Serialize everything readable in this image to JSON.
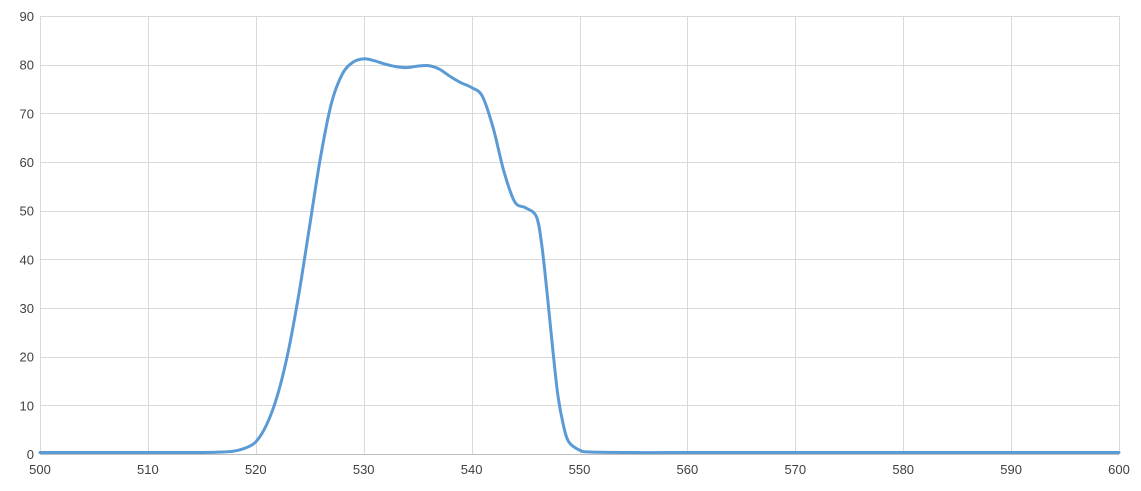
{
  "chart_data": {
    "type": "line",
    "title": "",
    "xlabel": "",
    "ylabel": "",
    "xlim": [
      500,
      600
    ],
    "ylim": [
      0,
      90
    ],
    "x_ticks": [
      500,
      510,
      520,
      530,
      540,
      550,
      560,
      570,
      580,
      590,
      600
    ],
    "y_ticks": [
      0,
      10,
      20,
      30,
      40,
      50,
      60,
      70,
      80,
      90
    ],
    "grid": true,
    "legend": "none",
    "colors": {
      "series": "#5b9bd5",
      "grid": "#d9d9d9",
      "axis": "#bfbfbf"
    },
    "series": [
      {
        "points": [
          [
            500,
            0.3
          ],
          [
            505,
            0.3
          ],
          [
            510,
            0.3
          ],
          [
            515,
            0.3
          ],
          [
            517,
            0.4
          ],
          [
            518,
            0.6
          ],
          [
            519,
            1.2
          ],
          [
            520,
            2.5
          ],
          [
            521,
            6
          ],
          [
            522,
            12
          ],
          [
            523,
            21
          ],
          [
            524,
            33
          ],
          [
            525,
            47
          ],
          [
            526,
            61
          ],
          [
            527,
            72
          ],
          [
            528,
            78
          ],
          [
            529,
            80.5
          ],
          [
            530,
            81.2
          ],
          [
            531,
            80.8
          ],
          [
            532,
            80.1
          ],
          [
            533,
            79.6
          ],
          [
            534,
            79.4
          ],
          [
            535,
            79.7
          ],
          [
            536,
            79.8
          ],
          [
            537,
            79.1
          ],
          [
            538,
            77.6
          ],
          [
            539,
            76.3
          ],
          [
            540,
            75.3
          ],
          [
            541,
            73.5
          ],
          [
            542,
            67
          ],
          [
            543,
            58
          ],
          [
            544,
            51.8
          ],
          [
            545,
            50.6
          ],
          [
            546,
            48.8
          ],
          [
            546.5,
            43
          ],
          [
            547,
            33
          ],
          [
            547.5,
            22
          ],
          [
            548,
            12
          ],
          [
            548.5,
            6
          ],
          [
            549,
            2.5
          ],
          [
            550,
            0.8
          ],
          [
            551,
            0.4
          ],
          [
            555,
            0.3
          ],
          [
            560,
            0.3
          ],
          [
            570,
            0.3
          ],
          [
            580,
            0.3
          ],
          [
            590,
            0.3
          ],
          [
            600,
            0.3
          ]
        ]
      }
    ]
  }
}
